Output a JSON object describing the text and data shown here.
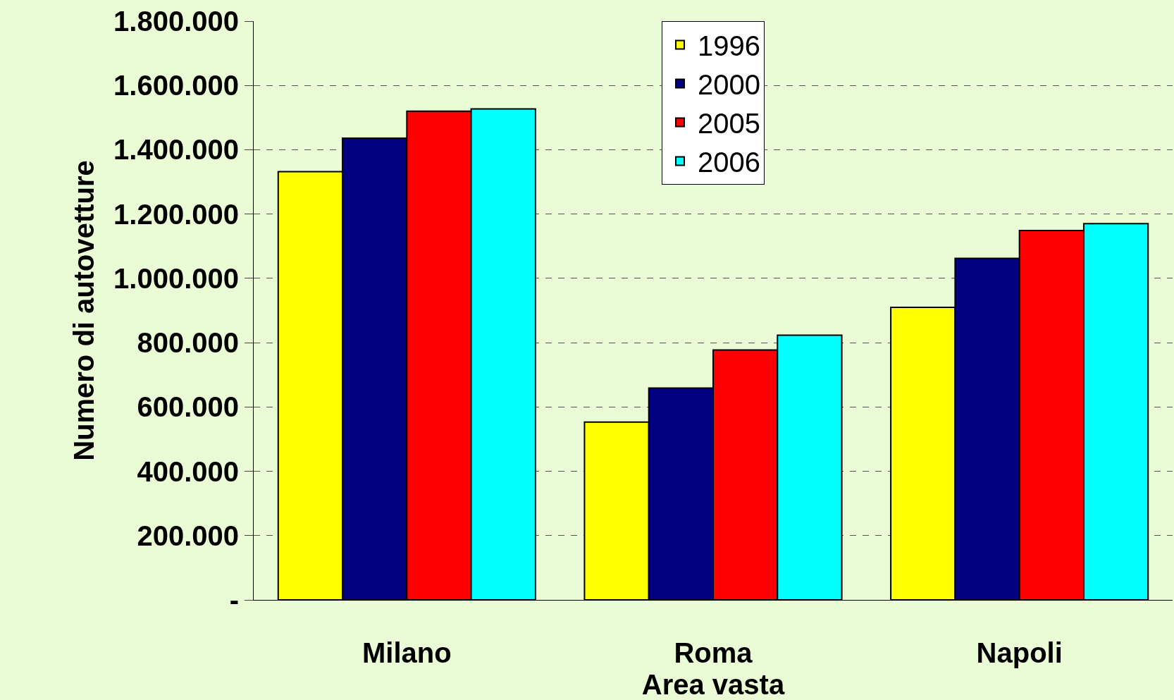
{
  "chart_data": {
    "type": "bar",
    "xlabel": "Area vasta",
    "ylabel": "Numero di autovetture",
    "categories": [
      "Milano",
      "Roma",
      "Napoli"
    ],
    "series": [
      {
        "name": "1996",
        "color": "#ffff00",
        "values": [
          1332000,
          553000,
          910000
        ]
      },
      {
        "name": "2000",
        "color": "#000080",
        "values": [
          1436000,
          659000,
          1062000
        ]
      },
      {
        "name": "2005",
        "color": "#ff0000",
        "values": [
          1520000,
          777000,
          1149000
        ]
      },
      {
        "name": "2006",
        "color": "#00ffff",
        "values": [
          1527000,
          823000,
          1170000
        ]
      }
    ],
    "ylim": [
      0,
      1800000
    ],
    "yticks": [
      {
        "value": 0,
        "label": "-"
      },
      {
        "value": 200000,
        "label": "200.000"
      },
      {
        "value": 400000,
        "label": "400.000"
      },
      {
        "value": 600000,
        "label": "600.000"
      },
      {
        "value": 800000,
        "label": "800.000"
      },
      {
        "value": 1000000,
        "label": "1.000.000"
      },
      {
        "value": 1200000,
        "label": "1.200.000"
      },
      {
        "value": 1400000,
        "label": "1.400.000"
      },
      {
        "value": 1600000,
        "label": "1.600.000"
      },
      {
        "value": 1800000,
        "label": "1.800.000"
      }
    ],
    "grid": "y",
    "legend": "top"
  }
}
